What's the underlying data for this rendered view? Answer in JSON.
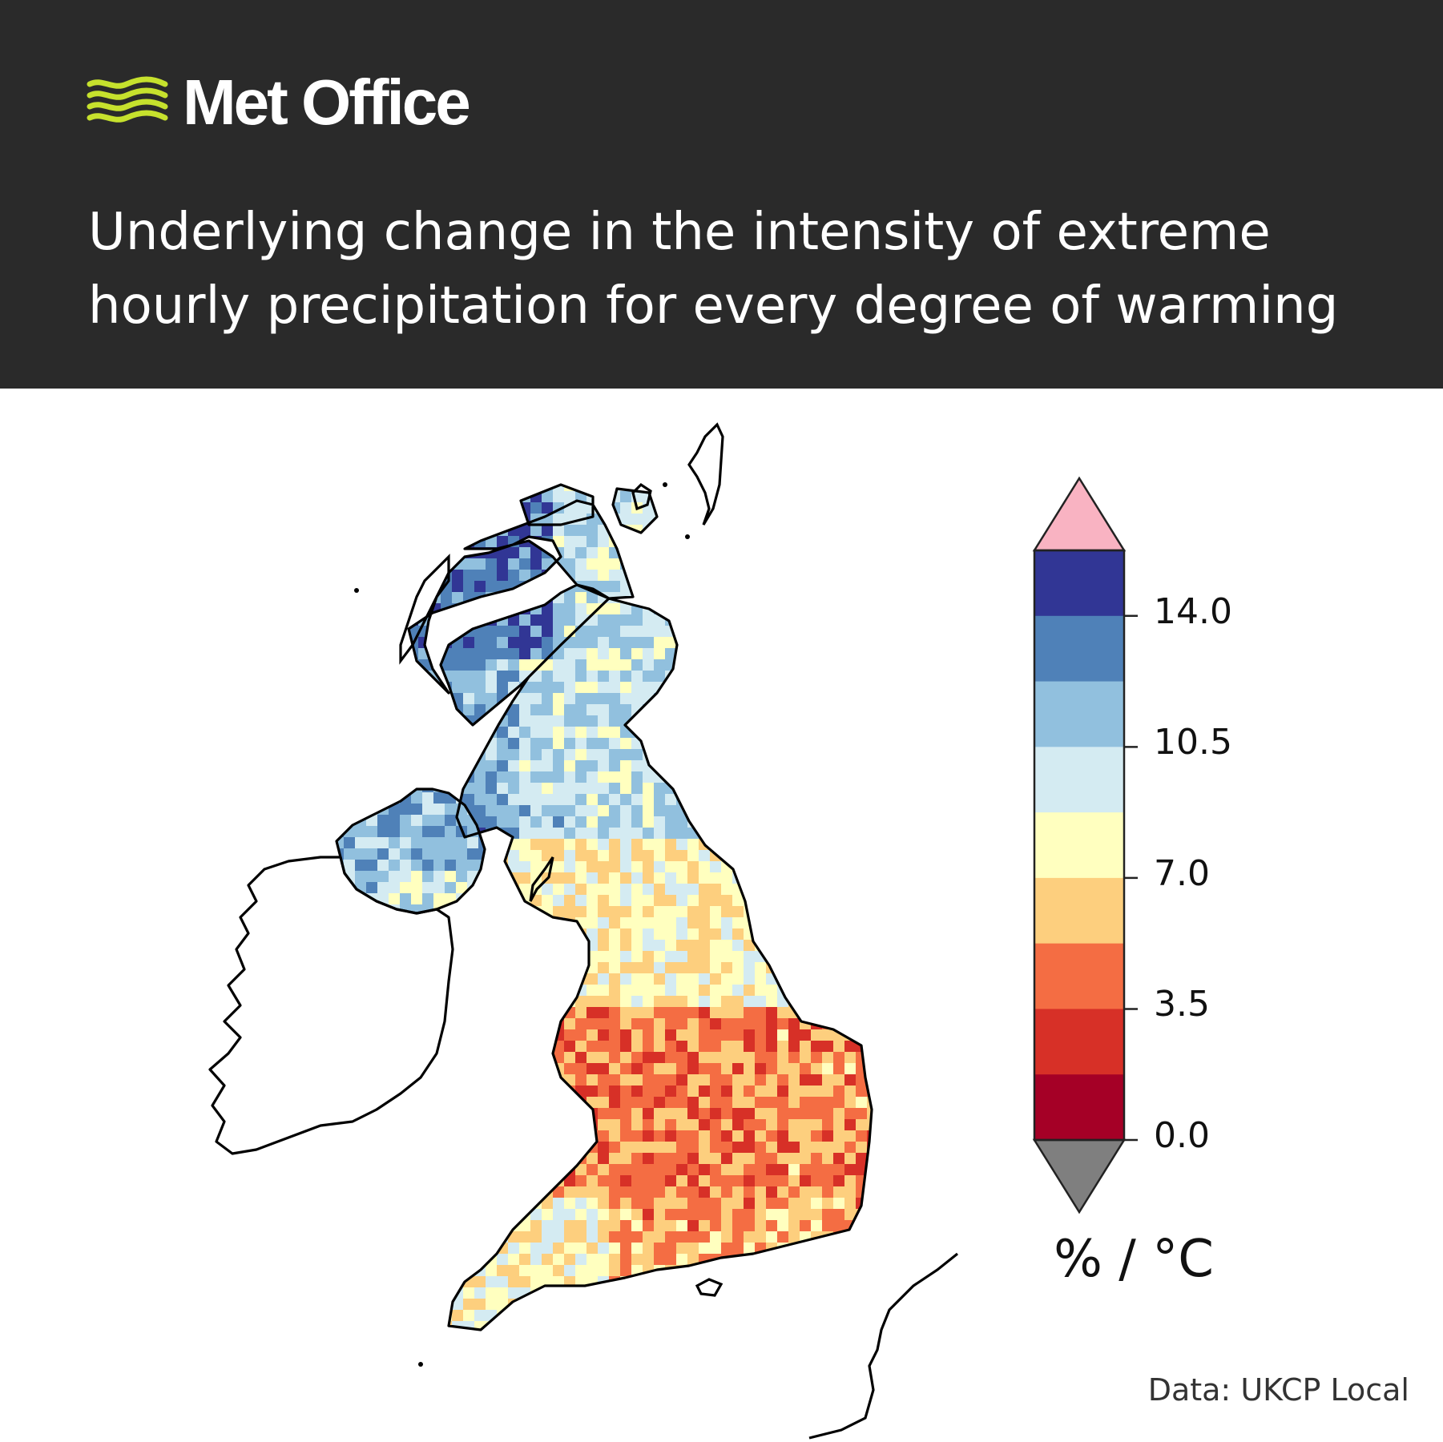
{
  "header": {
    "brand": "Met Office",
    "title": "Underlying change in the intensity of extreme hourly precipitation for every degree of warming",
    "colors": {
      "background": "#2a2a2a",
      "logo_accent": "#c6e12d",
      "text": "#ffffff"
    }
  },
  "map": {
    "region": "UK and Ireland",
    "color_scheme": {
      "bins": [
        {
          "range": [
            -999,
            0.0
          ],
          "color": "#7f7f7f"
        },
        {
          "range": [
            0.0,
            1.75
          ],
          "color": "#a50026"
        },
        {
          "range": [
            1.75,
            3.5
          ],
          "color": "#d73027"
        },
        {
          "range": [
            3.5,
            5.25
          ],
          "color": "#f46d43"
        },
        {
          "range": [
            5.25,
            7.0
          ],
          "color": "#fdcf7e"
        },
        {
          "range": [
            7.0,
            8.75
          ],
          "color": "#ffffbf"
        },
        {
          "range": [
            8.75,
            10.5
          ],
          "color": "#d4ebf2"
        },
        {
          "range": [
            10.5,
            12.25
          ],
          "color": "#91c0de"
        },
        {
          "range": [
            12.25,
            14.0
          ],
          "color": "#4f81b8"
        },
        {
          "range": [
            14.0,
            15.75
          ],
          "color": "#313695"
        },
        {
          "range": [
            15.75,
            999
          ],
          "color": "#f9b3c2"
        }
      ]
    },
    "regional_values_pct_per_degC": {
      "north_scotland_west": 13.5,
      "north_scotland_east": 10.0,
      "central_scotland": 10.8,
      "northern_ireland": 11.5,
      "northern_england": 7.5,
      "midlands": 4.5,
      "east_anglia": 5.0,
      "wales": 7.2,
      "southwest_england": 7.8,
      "southeast_england": 5.5
    }
  },
  "colorbar": {
    "ticks": [
      "14.0",
      "10.5",
      "7.0",
      "3.5",
      "0.0"
    ],
    "unit": "% / °C",
    "colors": [
      "#313695",
      "#4f81b8",
      "#91c0de",
      "#d4ebf2",
      "#ffffbf",
      "#fdcf7e",
      "#f46d43",
      "#d73027",
      "#a50026"
    ],
    "over_color": "#f9b3c2",
    "under_color": "#7f7f7f"
  },
  "source": "Data: UKCP Local"
}
